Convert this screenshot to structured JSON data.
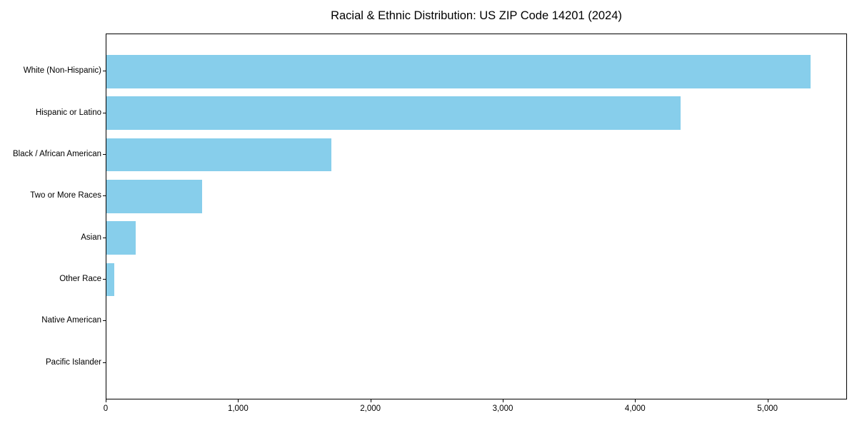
{
  "chart_data": {
    "type": "bar",
    "orientation": "horizontal",
    "title": "Racial & Ethnic Distribution: US ZIP Code 14201 (2024)",
    "categories": [
      "White (Non-Hispanic)",
      "Hispanic or Latino",
      "Black / African American",
      "Two or More Races",
      "Asian",
      "Other Race",
      "Native American",
      "Pacific Islander"
    ],
    "values": [
      5320,
      4340,
      1700,
      725,
      220,
      60,
      0,
      0
    ],
    "xlabel": "",
    "ylabel": "",
    "xlim": [
      0,
      5590
    ],
    "x_ticks": [
      0,
      1000,
      2000,
      3000,
      4000,
      5000
    ],
    "x_tick_labels": [
      "0",
      "1,000",
      "2,000",
      "3,000",
      "4,000",
      "5,000"
    ],
    "grid": false,
    "legend": null,
    "bar_color": "#87CEEB",
    "axis_color": "#000000",
    "background_color": "#ffffff"
  }
}
